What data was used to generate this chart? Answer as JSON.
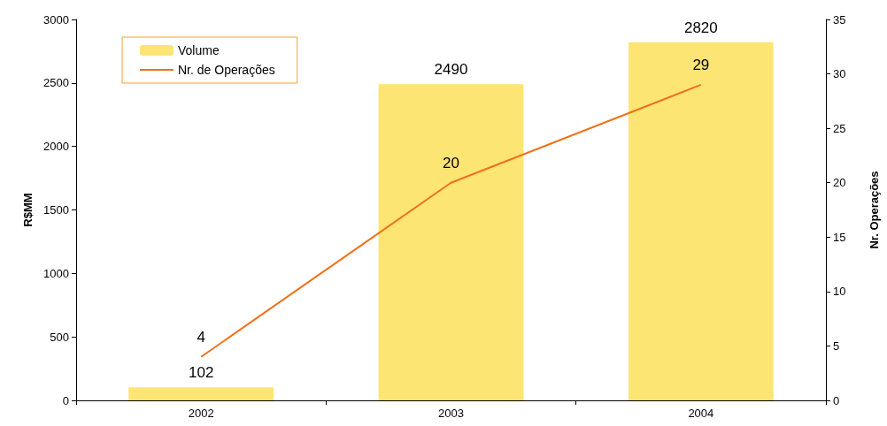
{
  "chart_data": {
    "type": "bar",
    "categories": [
      "2002",
      "2003",
      "2004"
    ],
    "series": [
      {
        "name": "Volume",
        "color": "#fde574",
        "values": [
          102,
          2490,
          2820
        ]
      },
      {
        "name": "Nr. de Operações",
        "type": "line",
        "axis": "y2",
        "color": "#f07018",
        "values": [
          4,
          20,
          29
        ]
      }
    ],
    "ylabel": "R$MM",
    "y2label": "Nr. Operações",
    "ylim": [
      0,
      3000
    ],
    "yticks": [
      0,
      500,
      1000,
      1500,
      2000,
      2500,
      3000
    ],
    "y2lim": [
      0,
      35
    ],
    "y2ticks": [
      0,
      5,
      10,
      15,
      20,
      25,
      30,
      35
    ],
    "data_labels": true,
    "legend": "top left",
    "grid": false,
    "marker": "none"
  }
}
